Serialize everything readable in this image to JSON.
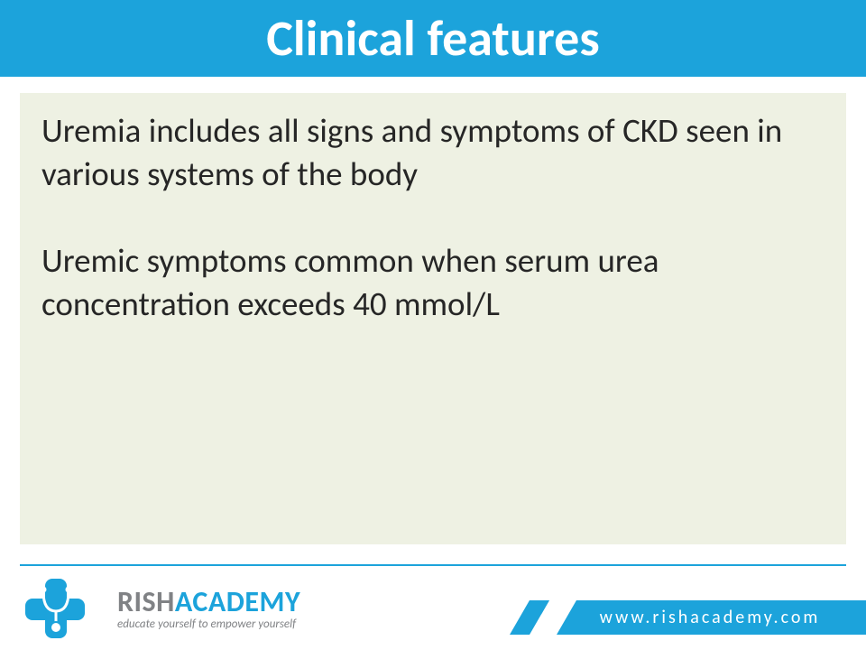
{
  "colors": {
    "header_bg": "#1ca3db",
    "header_text": "#ffffff",
    "content_bg": "#eef1e3",
    "content_text": "#262626",
    "footer_line": "#1ca3db",
    "brand_gray": "#808285",
    "brand_blue": "#1ca3db",
    "url_bg": "#1ca3db",
    "url_text": "#ffffff",
    "page_bg": "#ffffff"
  },
  "header": {
    "title": "Clinical features"
  },
  "content": {
    "paragraphs": [
      "Uremia includes all signs and symptoms of CKD seen in various systems of the body",
      "Uremic symptoms common when serum urea concentration exceeds 40 mmol/L"
    ]
  },
  "footer": {
    "brand_part1": "RISH",
    "brand_part2": "ACADEMY",
    "tagline": "educate yourself to empower yourself",
    "url": "www.rishacademy.com",
    "logo_description": "medical-cross-stethoscope-icon"
  },
  "typography": {
    "title_fontsize": 56,
    "body_fontsize": 37,
    "brand_fontsize": 32,
    "tagline_fontsize": 13,
    "url_fontsize": 20
  }
}
